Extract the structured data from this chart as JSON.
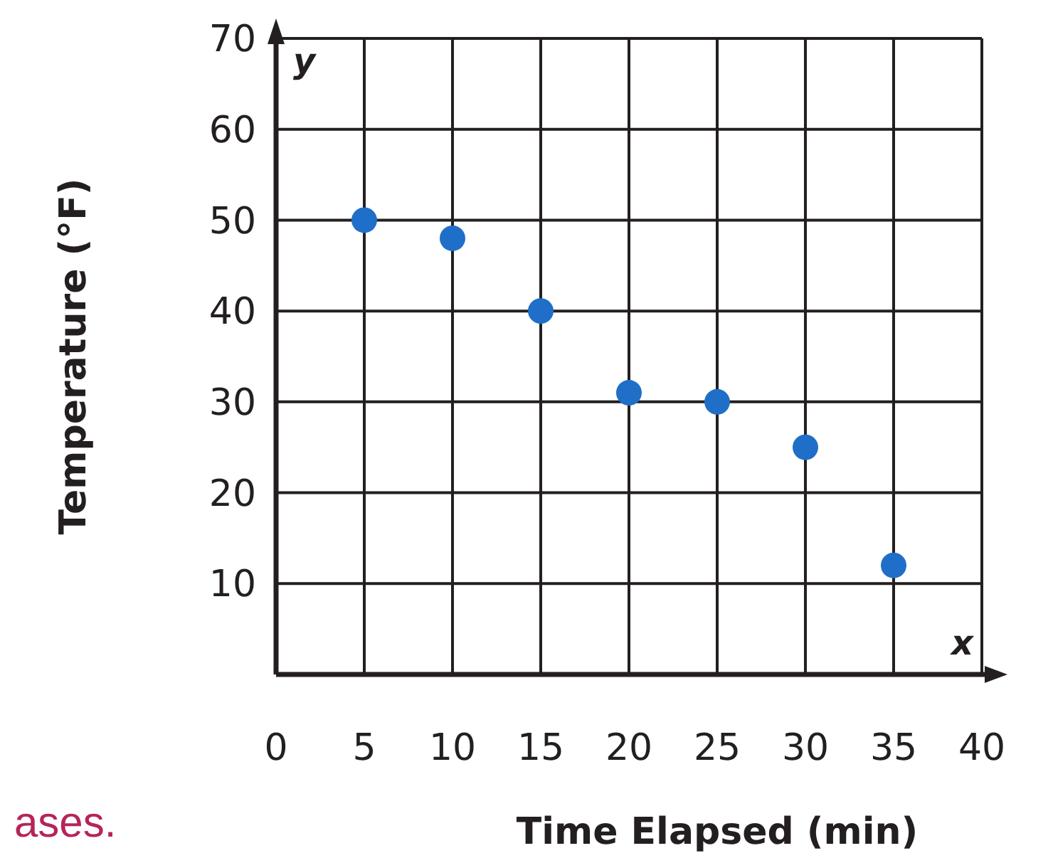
{
  "chart_data": {
    "type": "scatter",
    "xlabel": "Time Elapsed (min)",
    "ylabel": "Temperature (°F)",
    "x": [
      5,
      10,
      15,
      20,
      25,
      30,
      35
    ],
    "series": [
      {
        "color": "#1f6fc8",
        "values": [
          50,
          48,
          40,
          31,
          30,
          25,
          12
        ]
      }
    ],
    "xlim": [
      0,
      40
    ],
    "xticks": [
      0,
      5,
      10,
      15,
      20,
      25,
      30,
      35,
      40
    ],
    "ylim": [
      0,
      70
    ],
    "yticks": [
      {
        "value": 0,
        "label": null
      },
      10,
      20,
      30,
      40,
      50,
      60,
      70
    ],
    "grid": true,
    "marker": "circle",
    "annotations": [
      "x",
      "y",
      "ases."
    ]
  }
}
